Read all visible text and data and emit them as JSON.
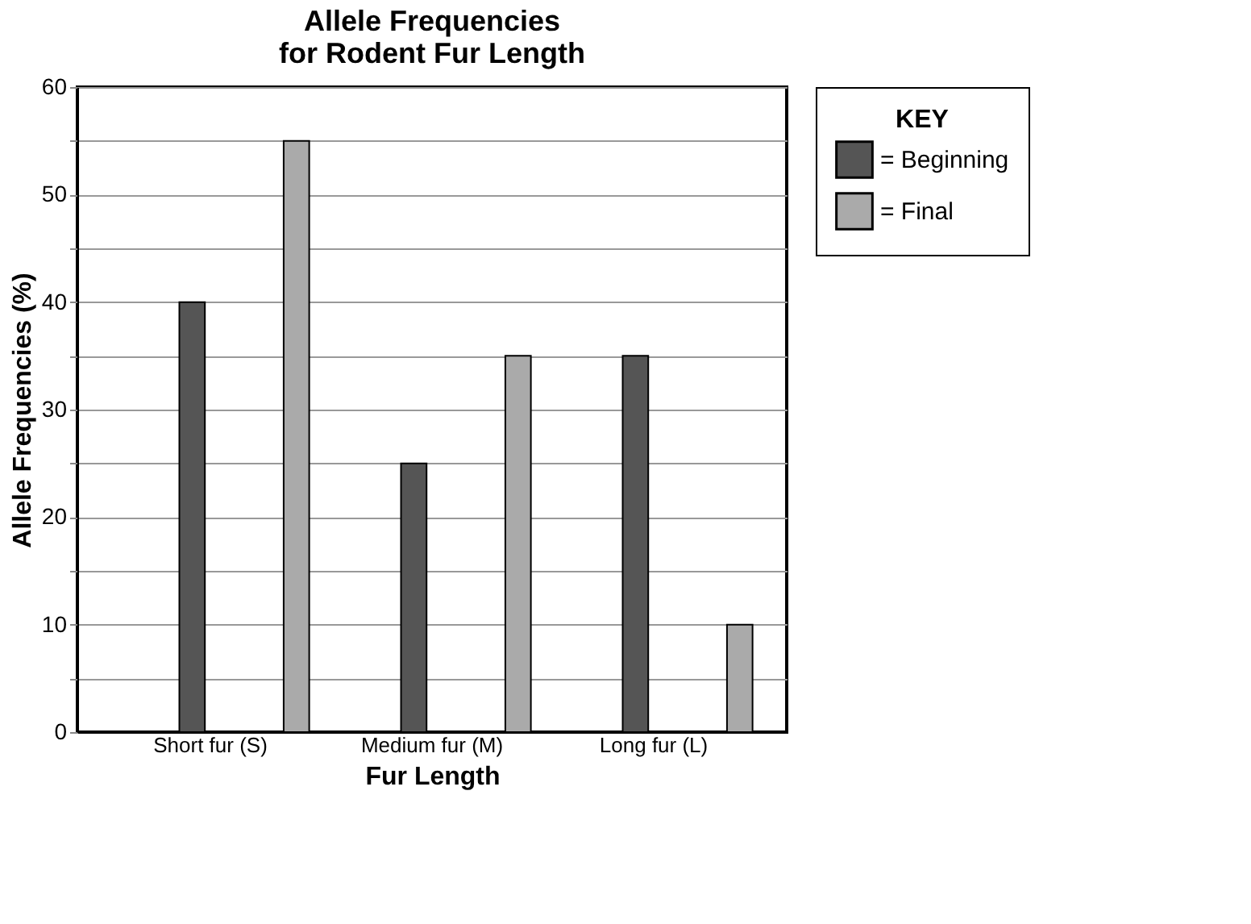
{
  "chart_data": {
    "type": "bar",
    "title": "Allele Frequencies\nfor Rodent Fur Length",
    "xlabel": "Fur Length",
    "ylabel": "Allele Frequencies (%)",
    "legend_title": "KEY",
    "categories": [
      "Short fur (S)",
      "Medium fur (M)",
      "Long fur (L)"
    ],
    "series": [
      {
        "name": "= Beginning",
        "color": "#555555",
        "values": [
          40,
          25,
          35
        ]
      },
      {
        "name": "= Final",
        "color": "#aaaaaa",
        "values": [
          55,
          35,
          10
        ]
      }
    ],
    "ylim": [
      0,
      60
    ],
    "yticks": [
      0,
      {
        "value": 5,
        "label": null
      },
      10,
      {
        "value": 15,
        "label": null
      },
      20,
      {
        "value": 25,
        "label": null
      },
      30,
      {
        "value": 35,
        "label": null
      },
      40,
      {
        "value": 45,
        "label": null
      },
      50,
      {
        "value": 55,
        "label": null
      },
      60
    ],
    "grid": "y",
    "legend": "right"
  }
}
